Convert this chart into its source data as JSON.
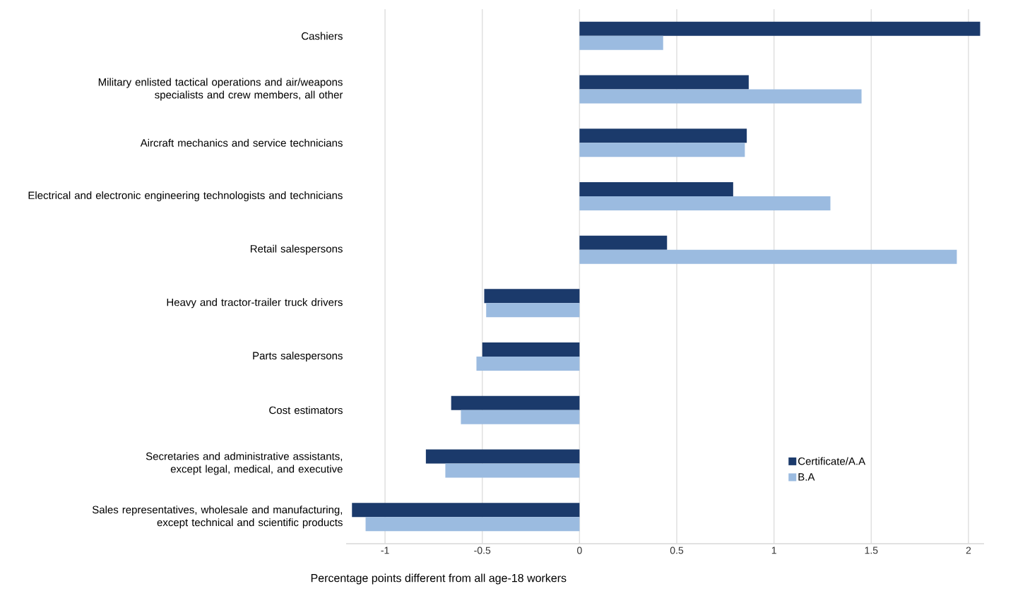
{
  "chart_data": {
    "type": "bar",
    "orientation": "horizontal",
    "xlabel": "Percentage points different from all age-18 workers",
    "categories": [
      "Cashiers",
      "Military enlisted tactical operations and air/weapons specialists and crew members, all other",
      "Aircraft mechanics and service technicians",
      "Electrical and electronic engineering technologists and technicians",
      "Retail salespersons",
      "Heavy and tractor-trailer truck drivers",
      "Parts salespersons",
      "Cost estimators",
      "Secretaries and administrative assistants, except legal, medical, and executive",
      "Sales representatives, wholesale and manufacturing, except technical and scientific products"
    ],
    "series": [
      {
        "name": "Certificate/A.A",
        "color": "#1b3a6b",
        "values": [
          2.06,
          0.87,
          0.86,
          0.79,
          0.45,
          -0.49,
          -0.5,
          -0.66,
          -0.79,
          -1.17
        ]
      },
      {
        "name": "B.A",
        "color": "#9bbbe0",
        "values": [
          0.43,
          1.45,
          0.85,
          1.29,
          1.94,
          -0.48,
          -0.53,
          -0.61,
          -0.69,
          -1.1
        ]
      }
    ],
    "xlim": [
      -1.2,
      2.08
    ],
    "xticks": [
      -1,
      -0.5,
      0,
      0.5,
      1,
      1.5,
      2
    ],
    "grid": "x",
    "legend": "bottom right"
  }
}
